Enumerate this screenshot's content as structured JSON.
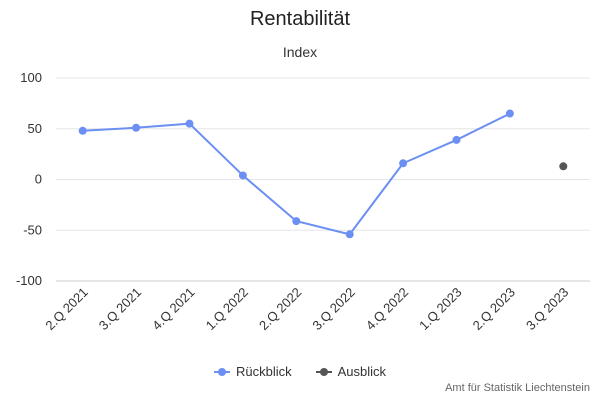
{
  "chart_data": {
    "type": "line",
    "title": "Rentabilität",
    "subtitle": "Index",
    "xlabel": "",
    "ylabel": "",
    "categories": [
      "2.Q 2021",
      "3.Q 2021",
      "4.Q 2021",
      "1.Q 2022",
      "2.Q 2022",
      "3.Q 2022",
      "4.Q 2022",
      "1.Q 2023",
      "2.Q 2023",
      "3.Q 2023"
    ],
    "ylim": [
      -100,
      100
    ],
    "yticks": [
      100,
      50,
      0,
      -50,
      -100
    ],
    "grid": true,
    "legend_position": "bottom",
    "series": [
      {
        "name": "Rückblick",
        "color": "#6b8ff2",
        "values": [
          48,
          51,
          55,
          4,
          -41,
          -54,
          16,
          39,
          65,
          null
        ]
      },
      {
        "name": "Ausblick",
        "color": "#555555",
        "values": [
          null,
          null,
          null,
          null,
          null,
          null,
          null,
          null,
          null,
          13
        ]
      }
    ],
    "credit": "Amt für Statistik Liechtenstein"
  }
}
